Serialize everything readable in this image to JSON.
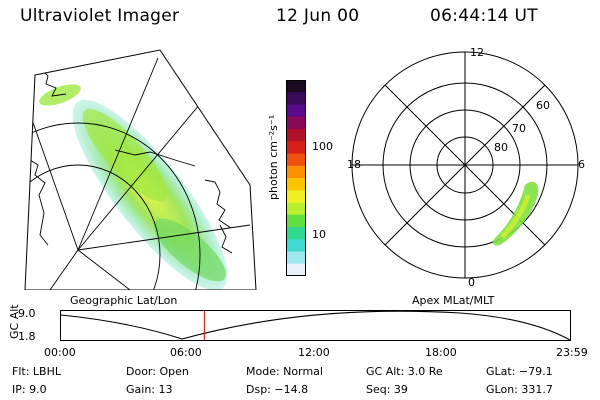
{
  "header": {
    "instrument": "Ultraviolet Imager",
    "date": "12 Jun 00",
    "time": "06:44:14 UT"
  },
  "colorbar": {
    "unit_label": "photon cm⁻²s⁻¹",
    "ticks": [
      "100",
      "10"
    ],
    "colors": [
      "#1a0a24",
      "#3a0a5a",
      "#5a0a8a",
      "#8a0a5a",
      "#b0102a",
      "#d8201a",
      "#f05010",
      "#ff9000",
      "#ffc400",
      "#f0f020",
      "#b8f030",
      "#60e040",
      "#30d890",
      "#40d8d0",
      "#a0e8f0",
      "#e8f0f8"
    ]
  },
  "left_panel": {
    "caption": "Geographic Lat/Lon"
  },
  "right_panel": {
    "caption": "Apex MLat/MLT",
    "mlt_labels": {
      "top": "12",
      "left": "18",
      "right": "6",
      "bottom": "0"
    },
    "mlat_labels": [
      "60",
      "70",
      "80"
    ]
  },
  "altitude_plot": {
    "ylabel": "GC Alt",
    "yticks": [
      "9.0",
      "1.8"
    ],
    "xticks": [
      "00:00",
      "06:00",
      "12:00",
      "18:00",
      "23:59"
    ],
    "current_time_fraction": 0.281
  },
  "info": {
    "flt": "Flt: LBHL",
    "ip": "IP:  9.0",
    "door": "Door: Open",
    "gain": "Gain: 13",
    "mode": "Mode: Normal",
    "dsp": "Dsp:   −14.8",
    "gc_alt": "GC Alt: 3.0 Re",
    "seq": "Seq: 39",
    "glat": "GLat: −79.1",
    "glon": "GLon: 331.7"
  }
}
